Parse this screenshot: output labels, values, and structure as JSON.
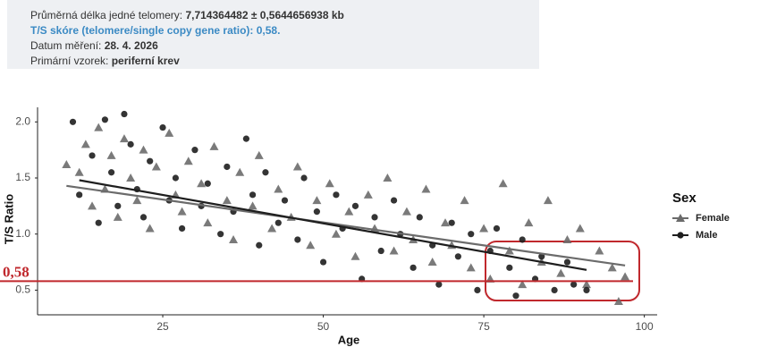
{
  "info": {
    "lines": [
      {
        "label": "Průměrná délka jedné telomery:",
        "value": "7,714364482 ± 0,5644656938 kb"
      },
      {
        "label": "T/S skóre (telomere/single copy gene ratio): 0,58."
      },
      {
        "label": "Datum měření:",
        "value": "28. 4. 2026"
      },
      {
        "label": "Primární vzorek:",
        "value": "periferní krev"
      }
    ]
  },
  "chart_data": {
    "type": "scatter",
    "x_label": "Age",
    "y_label": "T/S Ratio",
    "xlim": [
      5.5,
      102
    ],
    "ylim": [
      0.28,
      2.13
    ],
    "xticks": [
      25,
      50,
      75,
      100
    ],
    "yticks": [
      0.5,
      {
        "value": 1,
        "label": "1.0"
      },
      1.5,
      {
        "value": 2,
        "label": "2.0"
      }
    ],
    "grid": false,
    "legend_title": "Sex",
    "legend": "right",
    "annotations": [
      {
        "label": "0,58",
        "value": 0.58,
        "color": "#c0282d"
      }
    ],
    "series": [
      {
        "name": "Female",
        "color": "#6b6b6b",
        "marker": "triangle",
        "x": [
          10,
          12,
          13,
          14,
          15,
          16,
          17,
          18,
          19,
          20,
          21,
          22,
          23,
          24,
          26,
          27,
          28,
          29,
          31,
          32,
          33,
          35,
          36,
          37,
          39,
          40,
          42,
          43,
          45,
          46,
          48,
          49,
          51,
          52,
          54,
          55,
          57,
          58,
          60,
          61,
          63,
          64,
          66,
          67,
          69,
          70,
          72,
          73,
          75,
          76,
          78,
          79,
          81,
          82,
          84,
          85,
          87,
          88,
          90,
          91,
          93,
          95,
          96,
          97
        ],
        "values": [
          1.62,
          1.55,
          1.8,
          1.25,
          1.95,
          1.4,
          1.7,
          1.15,
          1.85,
          1.5,
          1.3,
          1.75,
          1.05,
          1.6,
          1.9,
          1.35,
          1.2,
          1.65,
          1.45,
          1.1,
          1.78,
          1.3,
          0.95,
          1.55,
          1.25,
          1.7,
          1.05,
          1.4,
          1.15,
          1.6,
          0.9,
          1.3,
          1.45,
          1.0,
          1.2,
          0.8,
          1.35,
          1.05,
          1.5,
          0.85,
          1.2,
          0.95,
          1.4,
          0.75,
          1.1,
          0.9,
          1.3,
          0.7,
          1.05,
          0.6,
          1.45,
          0.85,
          0.55,
          1.1,
          0.75,
          1.3,
          0.65,
          0.95,
          1.05,
          0.55,
          0.85,
          0.7,
          0.4,
          0.62
        ],
        "trend": {
          "x": [
            10,
            97
          ],
          "values": [
            1.43,
            0.72
          ]
        }
      },
      {
        "name": "Male",
        "color": "#1e1e1e",
        "marker": "circle",
        "x": [
          11,
          12,
          14,
          15,
          16,
          17,
          18,
          19,
          20,
          21,
          22,
          23,
          25,
          26,
          27,
          28,
          30,
          31,
          32,
          34,
          35,
          36,
          38,
          39,
          40,
          41,
          43,
          44,
          46,
          47,
          49,
          50,
          52,
          53,
          55,
          56,
          58,
          59,
          61,
          62,
          64,
          65,
          67,
          68,
          70,
          71,
          73,
          74,
          76,
          77,
          79,
          80,
          81,
          83,
          84,
          86,
          88,
          89,
          91
        ],
        "values": [
          2.0,
          1.35,
          1.7,
          1.1,
          2.02,
          1.55,
          1.25,
          2.07,
          1.8,
          1.4,
          1.15,
          1.65,
          1.95,
          1.3,
          1.5,
          1.05,
          1.75,
          1.25,
          1.45,
          1.0,
          1.6,
          1.2,
          1.85,
          1.35,
          0.9,
          1.55,
          1.1,
          1.3,
          0.95,
          1.5,
          1.2,
          0.75,
          1.35,
          1.05,
          1.25,
          0.6,
          1.15,
          0.85,
          1.3,
          1.0,
          0.7,
          1.15,
          0.9,
          0.55,
          1.1,
          0.8,
          1.0,
          0.5,
          0.85,
          1.05,
          0.7,
          0.45,
          0.95,
          0.6,
          0.8,
          0.5,
          0.75,
          0.55,
          0.5
        ],
        "trend": {
          "x": [
            12,
            91
          ],
          "values": [
            1.48,
            0.68
          ]
        }
      }
    ]
  }
}
